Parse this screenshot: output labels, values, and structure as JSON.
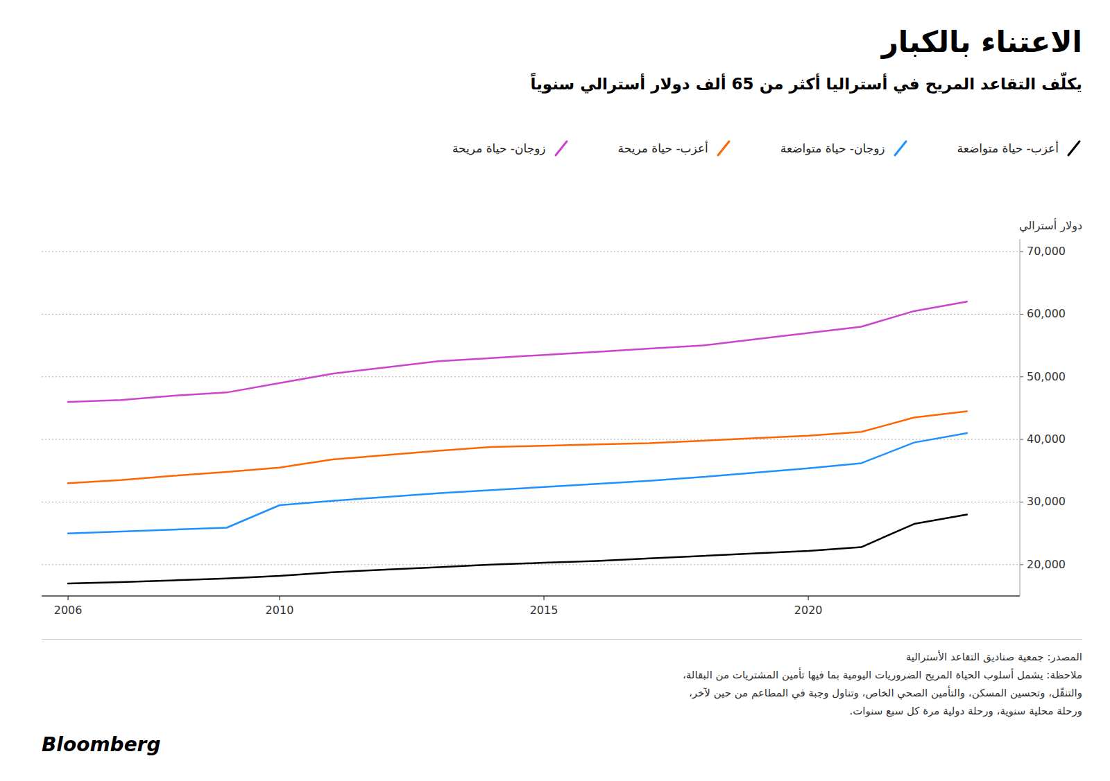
{
  "chart_data": {
    "type": "line",
    "title": "الاعتناء بالكبار",
    "subtitle": "يكلّف التقاعد المريح في أستراليا أكثر من 65 ألف دولار أسترالي سنوياً",
    "y_label": "دولار أسترالي",
    "notes": [
      "المصدر: جمعية صناديق التقاعد الأسترالية",
      "ملاحظة: يشمل أسلوب الحياة المريح الضروريات اليومية بما فيها تأمين المشتريات من البقالة،",
      "والتنقّل، وتحسين المسكن، والتأمين الصحي الخاص، وتناول وجبة في المطاعم من حين لآخر،",
      "ورحلة محلية سنوية، ورحلة دولية مرة كل سبع سنوات."
    ],
    "credit": "Bloomberg",
    "x": [
      2006,
      2007,
      2008,
      2009,
      2010,
      2011,
      2012,
      2013,
      2014,
      2015,
      2016,
      2017,
      2018,
      2019,
      2020,
      2021,
      2022,
      2023
    ],
    "series": [
      {
        "name": "أعزب- حياة متواضعة",
        "color": "#000000",
        "values": [
          17000,
          17200,
          17500,
          17800,
          18200,
          18800,
          19200,
          19600,
          20000,
          20300,
          20600,
          21000,
          21400,
          21800,
          22200,
          22800,
          26500,
          28000
        ]
      },
      {
        "name": "زوجان- حياة متواضعة",
        "color": "#1E90FF",
        "values": [
          25000,
          25300,
          25600,
          25900,
          29500,
          30200,
          30800,
          31400,
          31900,
          32400,
          32900,
          33400,
          34000,
          34700,
          35400,
          36200,
          39500,
          41000
        ]
      },
      {
        "name": "أعزب- حياة مريحة",
        "color": "#FF6600",
        "values": [
          33000,
          33500,
          34200,
          34800,
          35500,
          36800,
          37500,
          38200,
          38800,
          39000,
          39200,
          39400,
          39800,
          40200,
          40600,
          41200,
          43500,
          44500
        ]
      },
      {
        "name": "زوجان- حياة مريحة",
        "color": "#CC44CC",
        "values": [
          46000,
          46300,
          47000,
          47500,
          49000,
          50500,
          51500,
          52500,
          53000,
          53500,
          54000,
          54500,
          55000,
          56000,
          57000,
          58000,
          60500,
          62000
        ]
      }
    ],
    "xlim": [
      2005.5,
      2024
    ],
    "xticks": [
      2006,
      2010,
      2015,
      2020
    ],
    "ylim": [
      15000,
      72000
    ],
    "yticks": [
      {
        "value": 20000,
        "label": "20,000"
      },
      {
        "value": 30000,
        "label": "30,000"
      },
      {
        "value": 40000,
        "label": "40,000"
      },
      {
        "value": 50000,
        "label": "50,000"
      },
      {
        "value": 60000,
        "label": "60,000"
      },
      {
        "value": 70000,
        "label": "70,000"
      }
    ],
    "grid": true,
    "legend": "top-right"
  }
}
